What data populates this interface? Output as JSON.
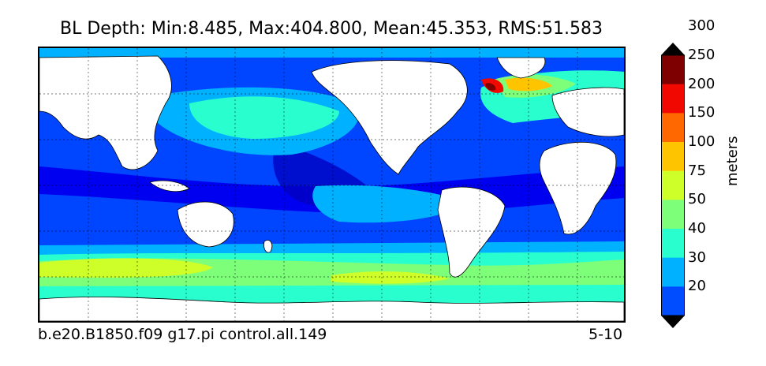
{
  "title": "BL Depth: Min:8.485, Max:404.800, Mean:45.353, RMS:51.583",
  "caption_left": "b.e20.B1850.f09 g17.pi control.all.149",
  "caption_right": "5-10",
  "colorbar": {
    "label": "meters",
    "ticks": [
      "20",
      "30",
      "40",
      "50",
      "75",
      "100",
      "150",
      "200",
      "250",
      "300"
    ],
    "colors": [
      "#00007f",
      "#0000f1",
      "#004dff",
      "#00b1ff",
      "#29ffce",
      "#7dff7a",
      "#ceff29",
      "#ffc400",
      "#ff6800",
      "#f10800",
      "#7f0000"
    ],
    "extend": "both"
  },
  "map": {
    "projection": "cylindrical",
    "grid": "dotted",
    "land_color": "#ffffff",
    "variable": "boundary layer depth"
  }
}
